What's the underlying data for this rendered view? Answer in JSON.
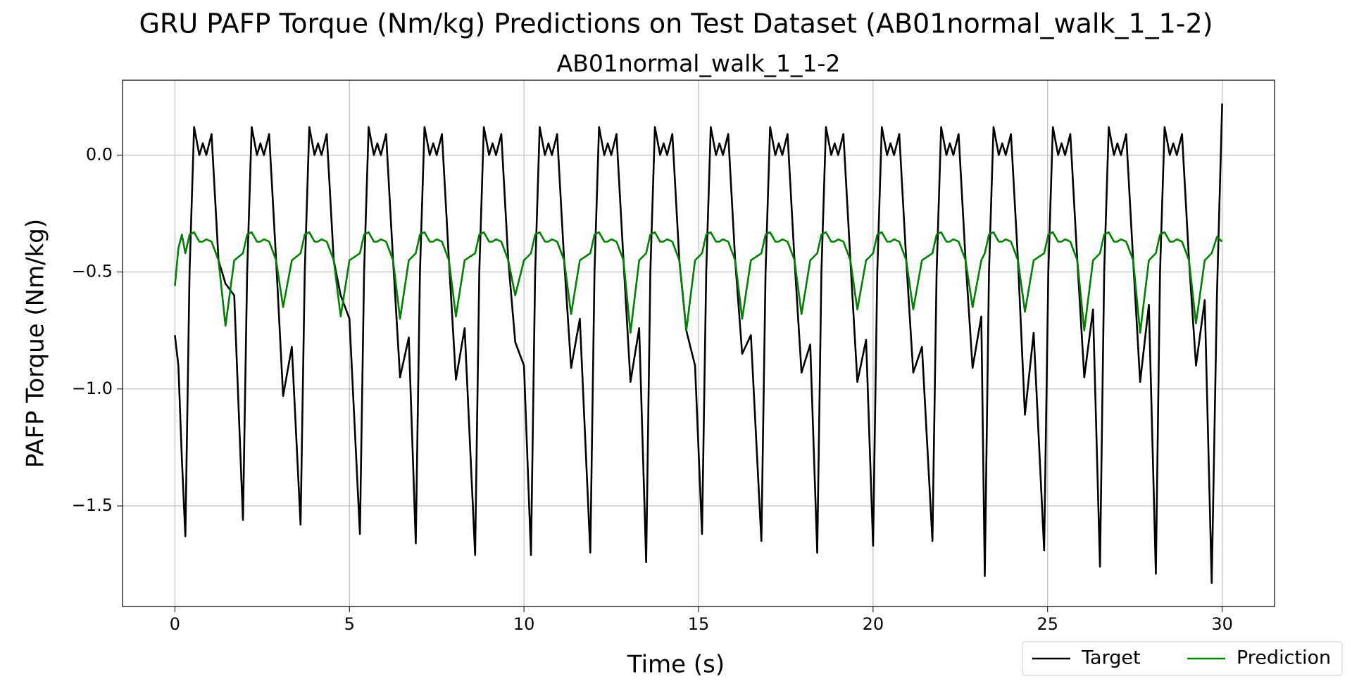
{
  "chart_data": {
    "type": "line",
    "title": "GRU PAFP Torque (Nm/kg) Predictions on Test Dataset (AB01normal_walk_1_1-2)",
    "subtitle": "AB01normal_walk_1_1-2",
    "x_label": "Time (s)",
    "y_label": "PAFP Torque (Nm/kg)",
    "xlim": [
      -1.5,
      31.5
    ],
    "ylim": [
      -1.93,
      0.32
    ],
    "xticks": [
      0,
      5,
      10,
      15,
      20,
      25,
      30
    ],
    "yticks": [
      {
        "value": 0,
        "label": "0.0"
      },
      {
        "value": -0.5,
        "label": "−0.5"
      },
      {
        "value": -1,
        "label": "−1.0"
      },
      {
        "value": -1.5,
        "label": "−1.5"
      }
    ],
    "grid": true,
    "legend": "lower right",
    "x": [
      0,
      0.1,
      0.2,
      0.3,
      0.42,
      0.55,
      0.7,
      0.8,
      0.9,
      1.05,
      1.25,
      1.45,
      1.7,
      1.95,
      2.07,
      2.2,
      2.35,
      2.45,
      2.55,
      2.7,
      2.9,
      3.1,
      3.35,
      3.6,
      3.72,
      3.85,
      4.0,
      4.1,
      4.2,
      4.35,
      4.55,
      4.75,
      5.0,
      5.3,
      5.42,
      5.55,
      5.7,
      5.8,
      5.9,
      6.05,
      6.25,
      6.45,
      6.7,
      6.9,
      7.02,
      7.15,
      7.3,
      7.4,
      7.5,
      7.65,
      7.85,
      8.05,
      8.3,
      8.6,
      8.72,
      8.85,
      9.0,
      9.1,
      9.2,
      9.35,
      9.55,
      9.75,
      10.0,
      10.2,
      10.32,
      10.45,
      10.6,
      10.7,
      10.8,
      10.95,
      11.15,
      11.35,
      11.6,
      11.9,
      12.02,
      12.15,
      12.3,
      12.4,
      12.5,
      12.65,
      12.85,
      13.05,
      13.3,
      13.5,
      13.62,
      13.75,
      13.9,
      14.0,
      14.1,
      14.25,
      14.45,
      14.65,
      14.9,
      15.1,
      15.22,
      15.35,
      15.5,
      15.6,
      15.7,
      15.85,
      16.05,
      16.25,
      16.5,
      16.8,
      16.92,
      17.05,
      17.2,
      17.3,
      17.4,
      17.55,
      17.75,
      17.95,
      18.2,
      18.4,
      18.52,
      18.65,
      18.8,
      18.9,
      19.0,
      19.15,
      19.35,
      19.55,
      19.8,
      20.0,
      20.12,
      20.25,
      20.4,
      20.5,
      20.6,
      20.75,
      20.95,
      21.15,
      21.4,
      21.7,
      21.82,
      21.95,
      22.1,
      22.2,
      22.3,
      22.45,
      22.65,
      22.85,
      23.1,
      23.2,
      23.32,
      23.45,
      23.6,
      23.7,
      23.8,
      23.95,
      24.15,
      24.35,
      24.6,
      24.9,
      25.02,
      25.15,
      25.3,
      25.4,
      25.5,
      25.65,
      25.85,
      26.05,
      26.3,
      26.5,
      26.62,
      26.75,
      26.9,
      27.0,
      27.1,
      27.25,
      27.45,
      27.65,
      27.9,
      28.1,
      28.22,
      28.35,
      28.5,
      28.6,
      28.7,
      28.85,
      29.05,
      29.25,
      29.5,
      29.7,
      29.85,
      30.0
    ],
    "series": [
      {
        "name": "Target",
        "color": "#000000",
        "values": [
          -0.77,
          -0.9,
          -1.3,
          -1.63,
          -0.5,
          0.12,
          0.0,
          0.05,
          0.0,
          0.09,
          -0.45,
          -0.55,
          -0.6,
          -1.56,
          -0.5,
          0.12,
          0.0,
          0.05,
          0.0,
          0.09,
          -0.45,
          -1.03,
          -0.82,
          -1.58,
          -0.5,
          0.12,
          0.0,
          0.05,
          0.0,
          0.09,
          -0.45,
          -0.6,
          -0.7,
          -1.62,
          -0.5,
          0.12,
          0.0,
          0.05,
          0.0,
          0.09,
          -0.45,
          -0.95,
          -0.78,
          -1.66,
          -0.5,
          0.12,
          0.0,
          0.05,
          0.0,
          0.09,
          -0.45,
          -0.96,
          -0.74,
          -1.71,
          -0.5,
          0.12,
          0.0,
          0.05,
          0.0,
          0.09,
          -0.45,
          -0.8,
          -0.9,
          -1.71,
          -0.5,
          0.12,
          0.0,
          0.05,
          0.0,
          0.09,
          -0.45,
          -0.91,
          -0.7,
          -1.7,
          -0.5,
          0.12,
          0.0,
          0.05,
          0.0,
          0.09,
          -0.45,
          -0.97,
          -0.74,
          -1.74,
          -0.5,
          0.12,
          0.0,
          0.05,
          0.0,
          0.09,
          -0.45,
          -0.75,
          -0.9,
          -1.62,
          -0.5,
          0.12,
          0.0,
          0.05,
          0.0,
          0.09,
          -0.45,
          -0.85,
          -0.77,
          -1.65,
          -0.5,
          0.12,
          0.0,
          0.05,
          0.0,
          0.09,
          -0.45,
          -0.93,
          -0.81,
          -1.7,
          -0.5,
          0.12,
          0.0,
          0.05,
          0.0,
          0.09,
          -0.45,
          -0.97,
          -0.79,
          -1.67,
          -0.5,
          0.12,
          0.0,
          0.05,
          0.0,
          0.09,
          -0.45,
          -0.93,
          -0.82,
          -1.65,
          -0.5,
          0.12,
          0.0,
          0.05,
          0.0,
          0.09,
          -0.45,
          -0.91,
          -0.69,
          -1.8,
          -0.5,
          0.12,
          0.0,
          0.05,
          0.0,
          0.09,
          -0.45,
          -1.11,
          -0.76,
          -1.69,
          -0.5,
          0.12,
          0.0,
          0.05,
          0.0,
          0.09,
          -0.45,
          -0.95,
          -0.66,
          -1.76,
          -0.5,
          0.12,
          0.0,
          0.05,
          0.0,
          0.09,
          -0.45,
          -0.97,
          -0.64,
          -1.79,
          -0.5,
          0.12,
          0.0,
          0.05,
          0.0,
          0.09,
          -0.45,
          -0.9,
          -0.62,
          -1.83,
          -0.6,
          0.22
        ]
      },
      {
        "name": "Prediction",
        "color": "#008000",
        "values": [
          -0.56,
          -0.4,
          -0.34,
          -0.42,
          -0.34,
          -0.33,
          -0.37,
          -0.37,
          -0.36,
          -0.37,
          -0.45,
          -0.73,
          -0.45,
          -0.42,
          -0.34,
          -0.33,
          -0.37,
          -0.37,
          -0.36,
          -0.37,
          -0.45,
          -0.65,
          -0.45,
          -0.42,
          -0.34,
          -0.33,
          -0.37,
          -0.37,
          -0.36,
          -0.37,
          -0.45,
          -0.69,
          -0.45,
          -0.42,
          -0.34,
          -0.33,
          -0.37,
          -0.37,
          -0.36,
          -0.37,
          -0.45,
          -0.7,
          -0.45,
          -0.42,
          -0.34,
          -0.33,
          -0.37,
          -0.37,
          -0.36,
          -0.37,
          -0.45,
          -0.69,
          -0.45,
          -0.42,
          -0.34,
          -0.33,
          -0.37,
          -0.37,
          -0.36,
          -0.37,
          -0.45,
          -0.6,
          -0.45,
          -0.42,
          -0.34,
          -0.33,
          -0.37,
          -0.37,
          -0.36,
          -0.37,
          -0.45,
          -0.68,
          -0.45,
          -0.42,
          -0.34,
          -0.33,
          -0.37,
          -0.37,
          -0.36,
          -0.37,
          -0.45,
          -0.76,
          -0.45,
          -0.42,
          -0.34,
          -0.33,
          -0.37,
          -0.37,
          -0.36,
          -0.37,
          -0.45,
          -0.75,
          -0.45,
          -0.42,
          -0.34,
          -0.33,
          -0.37,
          -0.37,
          -0.36,
          -0.37,
          -0.45,
          -0.7,
          -0.45,
          -0.42,
          -0.34,
          -0.33,
          -0.37,
          -0.37,
          -0.36,
          -0.37,
          -0.45,
          -0.68,
          -0.45,
          -0.42,
          -0.34,
          -0.33,
          -0.37,
          -0.37,
          -0.36,
          -0.37,
          -0.45,
          -0.66,
          -0.45,
          -0.42,
          -0.34,
          -0.33,
          -0.37,
          -0.37,
          -0.36,
          -0.37,
          -0.45,
          -0.66,
          -0.45,
          -0.42,
          -0.34,
          -0.33,
          -0.37,
          -0.37,
          -0.36,
          -0.37,
          -0.45,
          -0.65,
          -0.45,
          -0.42,
          -0.34,
          -0.33,
          -0.37,
          -0.37,
          -0.36,
          -0.37,
          -0.45,
          -0.67,
          -0.45,
          -0.42,
          -0.34,
          -0.33,
          -0.37,
          -0.37,
          -0.36,
          -0.37,
          -0.45,
          -0.75,
          -0.45,
          -0.42,
          -0.34,
          -0.33,
          -0.37,
          -0.37,
          -0.36,
          -0.37,
          -0.45,
          -0.76,
          -0.45,
          -0.42,
          -0.34,
          -0.33,
          -0.37,
          -0.37,
          -0.36,
          -0.37,
          -0.45,
          -0.72,
          -0.45,
          -0.42,
          -0.35,
          -0.37
        ]
      }
    ]
  }
}
